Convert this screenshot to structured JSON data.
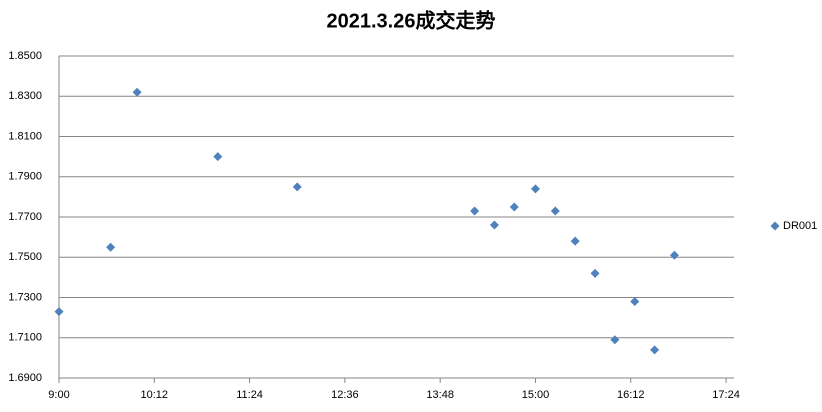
{
  "chart_data": {
    "type": "scatter",
    "title": "2021.3.26成交走势",
    "x": [
      540,
      579,
      599,
      660,
      720,
      854,
      869,
      884,
      900,
      915,
      930,
      945,
      960,
      975,
      990,
      1005
    ],
    "series": [
      {
        "name": "DR001",
        "color": "#4f81bd",
        "values": [
          1.723,
          1.755,
          1.832,
          1.8,
          1.785,
          1.773,
          1.766,
          1.775,
          1.784,
          1.773,
          1.758,
          1.742,
          1.709,
          1.728,
          1.704,
          1.751
        ]
      }
    ],
    "xlim": [
      540,
      1050
    ],
    "xticks": [
      {
        "value": 540,
        "label": "9:00"
      },
      {
        "value": 612,
        "label": "10:12"
      },
      {
        "value": 684,
        "label": "11:24"
      },
      {
        "value": 756,
        "label": "12:36"
      },
      {
        "value": 828,
        "label": "13:48"
      },
      {
        "value": 900,
        "label": "15:00"
      },
      {
        "value": 972,
        "label": "16:12"
      },
      {
        "value": 1044,
        "label": "17:24"
      }
    ],
    "ylim": [
      1.69,
      1.85
    ],
    "yticks": [
      {
        "value": 1.69,
        "label": "1.6900"
      },
      {
        "value": 1.71,
        "label": "1.7100"
      },
      {
        "value": 1.73,
        "label": "1.7300"
      },
      {
        "value": 1.75,
        "label": "1.7500"
      },
      {
        "value": 1.77,
        "label": "1.7700"
      },
      {
        "value": 1.79,
        "label": "1.7900"
      },
      {
        "value": 1.81,
        "label": "1.8100"
      },
      {
        "value": 1.83,
        "label": "1.8300"
      },
      {
        "value": 1.85,
        "label": "1.8500"
      }
    ],
    "grid": true,
    "legend": "right"
  }
}
